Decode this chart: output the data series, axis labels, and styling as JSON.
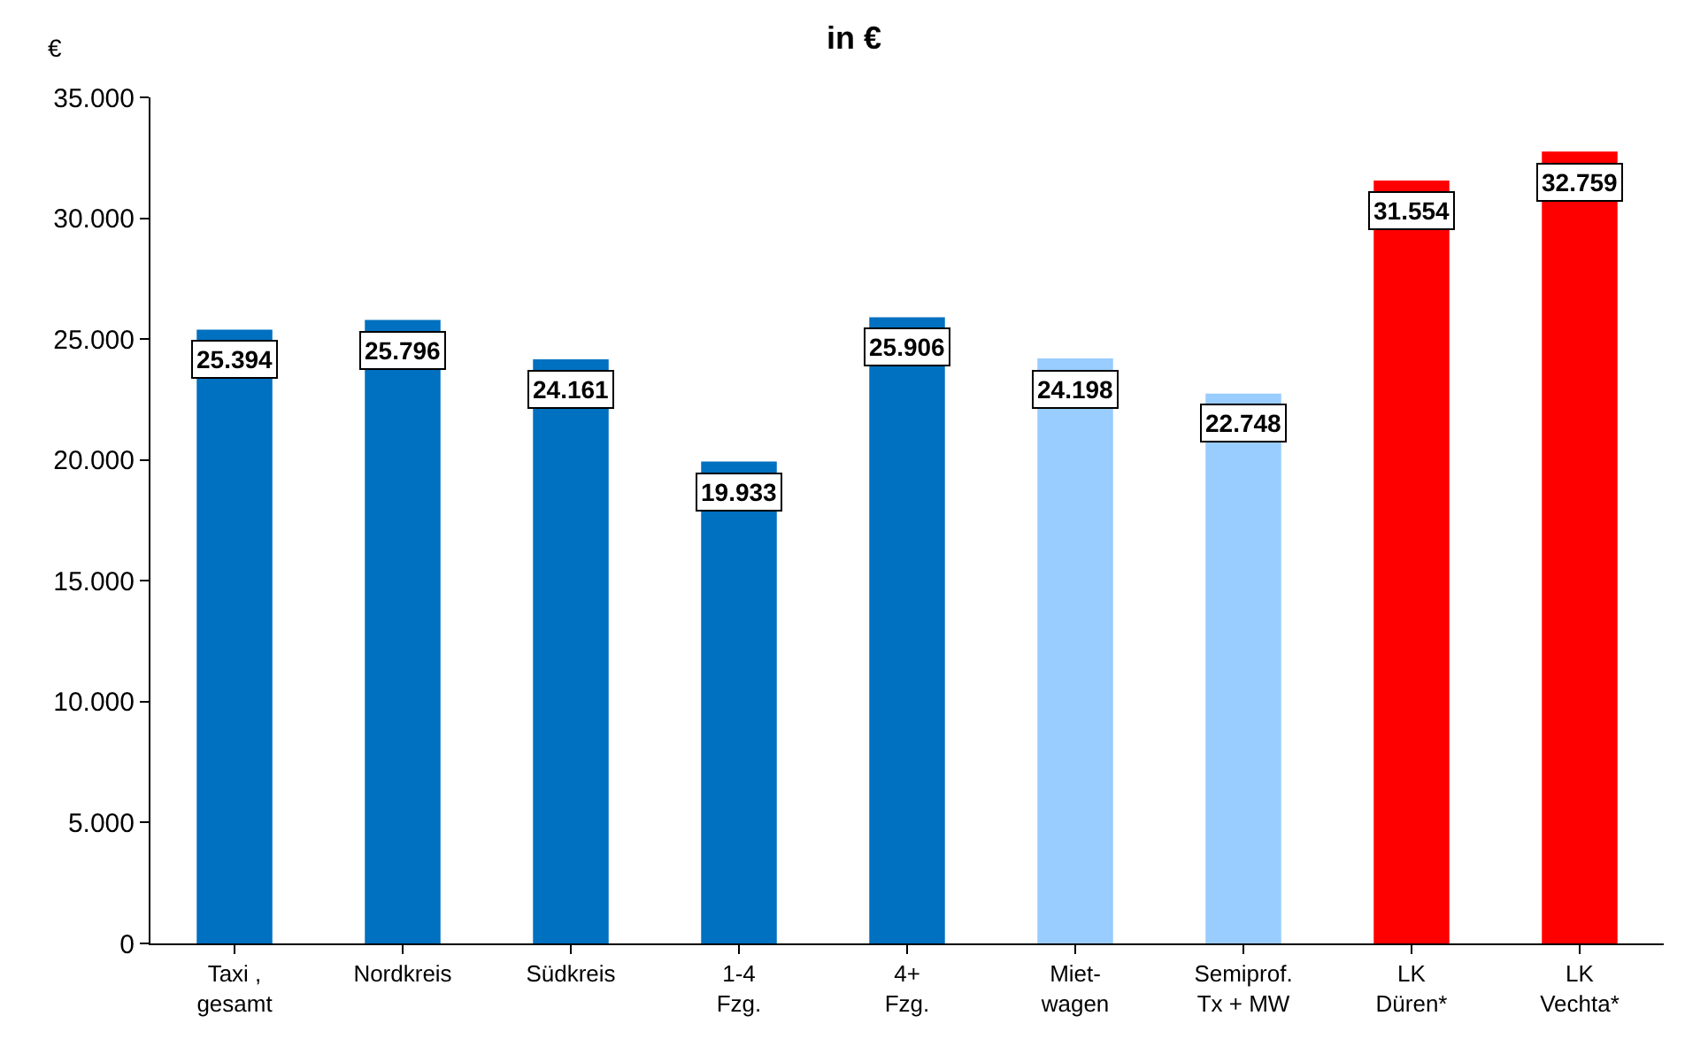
{
  "chart_data": {
    "type": "bar",
    "title": "in €",
    "ylabel": "€",
    "categories": [
      "Taxi ,\ngesamt",
      "Nordkreis",
      "Südkreis",
      "1-4\nFzg.",
      "4+\nFzg.",
      "Miet-\nwagen",
      "Semiprof.\nTx + MW",
      "LK\nDüren*",
      "LK\nVechta*"
    ],
    "values": [
      25394,
      25796,
      24161,
      19933,
      25906,
      24198,
      22748,
      31554,
      32759
    ],
    "value_labels": [
      "25.394",
      "25.796",
      "24.161",
      "19.933",
      "25.906",
      "24.198",
      "22.748",
      "31.554",
      "32.759"
    ],
    "colors": [
      "#0070c0",
      "#0070c0",
      "#0070c0",
      "#0070c0",
      "#0070c0",
      "#99ccff",
      "#99ccff",
      "#ff0000",
      "#ff0000"
    ],
    "ylim": [
      0,
      35000
    ],
    "yticks": [
      0,
      {
        "value": 5000,
        "label": "5.000"
      },
      {
        "value": 10000,
        "label": "10.000"
      },
      {
        "value": 15000,
        "label": "15.000"
      },
      {
        "value": 20000,
        "label": "20.000"
      },
      {
        "value": 25000,
        "label": "25.000"
      },
      {
        "value": 30000,
        "label": "30.000"
      },
      {
        "value": 35000,
        "label": "35.000"
      }
    ],
    "legend": false
  }
}
